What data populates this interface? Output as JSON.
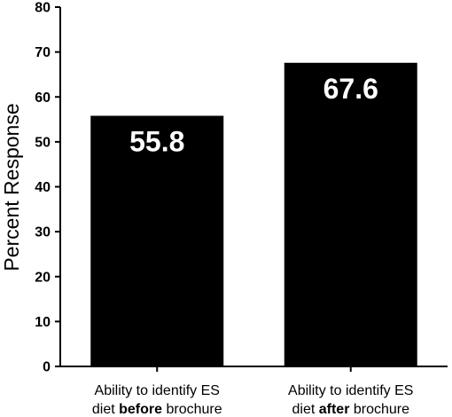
{
  "chart_data": {
    "type": "bar",
    "ylabel": "Percent Response",
    "xlabel": "",
    "ylim": [
      0,
      80
    ],
    "yticks": [
      0,
      10,
      20,
      30,
      40,
      50,
      60,
      70,
      80
    ],
    "grid": false,
    "categories": [
      "Ability to identify ES diet before brochure",
      "Ability to identify ES diet after brochure"
    ],
    "category_lines": [
      {
        "line1": "Ability to identify ES",
        "line2_pre": "diet ",
        "line2_bold": "before",
        "line2_post": " brochure"
      },
      {
        "line1": "Ability to identify ES",
        "line2_pre": "diet ",
        "line2_bold": "after",
        "line2_post": " brochure"
      }
    ],
    "values": [
      55.8,
      67.6
    ],
    "data_labels": [
      "55.8",
      "67.6"
    ],
    "bar_color": "#000000",
    "label_color": "#ffffff"
  }
}
